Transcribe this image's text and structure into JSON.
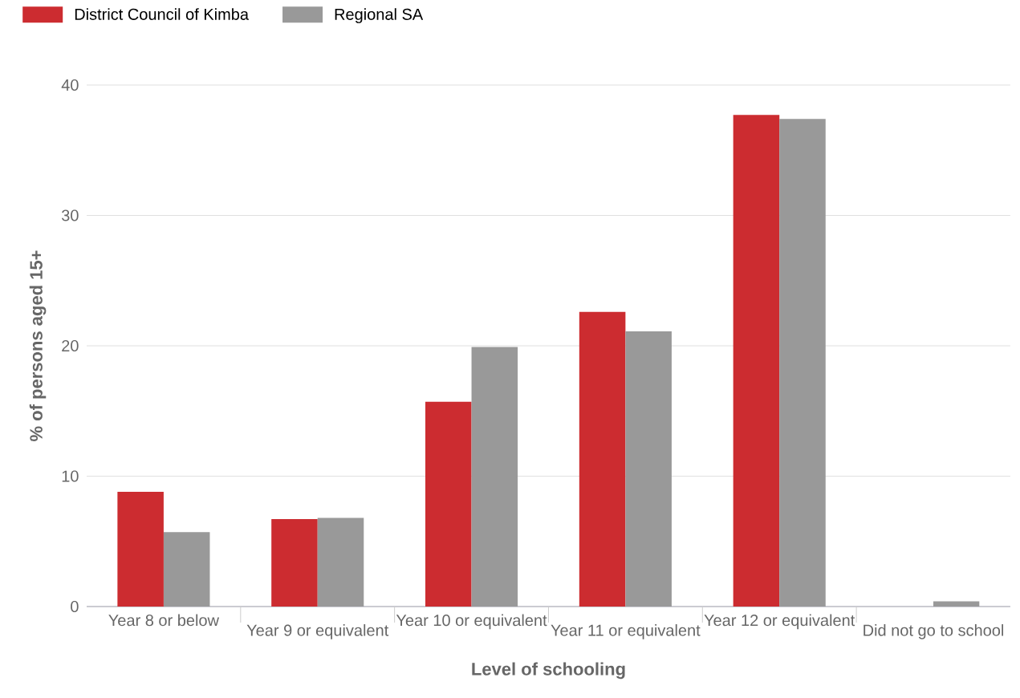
{
  "chart_data": {
    "type": "bar",
    "xlabel": "Level of schooling",
    "ylabel": "% of persons aged 15+",
    "categories": [
      "Year 8 or below",
      "Year 9 or equivalent",
      "Year 10 or equivalent",
      "Year 11 or equivalent",
      "Year 12 or equivalent",
      "Did not go to school"
    ],
    "series": [
      {
        "name": "District Council of Kimba",
        "color": "#cc2c30",
        "values": [
          8.8,
          6.7,
          15.7,
          22.6,
          37.7,
          0
        ]
      },
      {
        "name": "Regional SA",
        "color": "#999999",
        "values": [
          5.7,
          6.8,
          19.9,
          21.1,
          37.4,
          0.4
        ]
      }
    ],
    "ylim": [
      0,
      40
    ],
    "yticks": [
      0,
      10,
      20,
      30,
      40
    ],
    "grid": "y",
    "legend": "top left"
  }
}
